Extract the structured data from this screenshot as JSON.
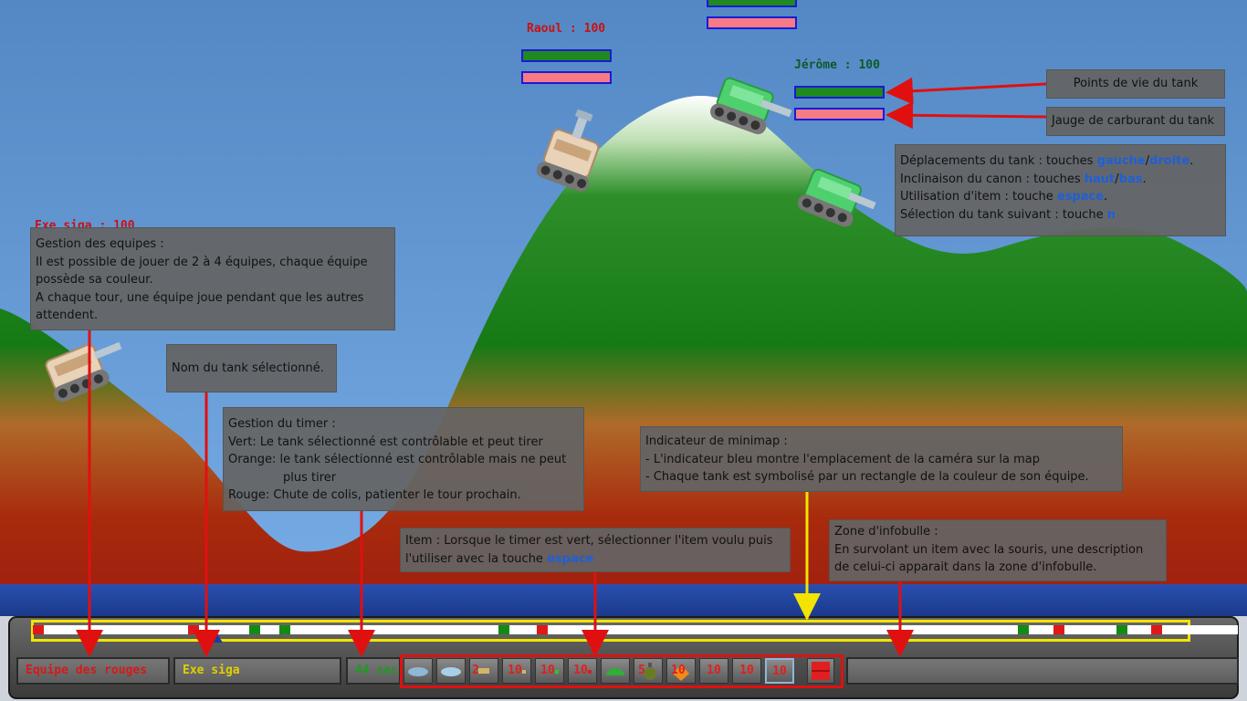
{
  "tanks": {
    "raoul": {
      "name": "Raoul : 100",
      "color": "#cc1010"
    },
    "jerome": {
      "name": "Jérôme : 100",
      "color": "#0d5a2a"
    },
    "exe_siga_partial": {
      "name": "Exe siga : 100",
      "color": "#cc1010"
    }
  },
  "annotations": {
    "hp": "Points de vie du tank",
    "fuel": "Jauge de carburant du tank",
    "controls": {
      "l1_pre": "Déplacements du tank : touches ",
      "l1_k1": "gauche",
      "l1_sep": "/",
      "l1_k2": "droite",
      "l1_post": ".",
      "l2_pre": "Inclinaison du canon : touches ",
      "l2_k1": "haut",
      "l2_sep": "/",
      "l2_k2": "bas",
      "l2_post": ".",
      "l3_pre": "Utilisation d'item : touche ",
      "l3_k": "espace",
      "l3_post": ".",
      "l4_pre": "Sélection du tank suivant :  touche ",
      "l4_k": "n"
    },
    "teams": {
      "l1": "Gestion des equipes :",
      "l2": "Il est possible de jouer de 2 à 4 équipes, chaque équipe",
      "l3": "possède sa couleur.",
      "l4": "A chaque tour, une équipe joue pendant que les autres",
      "l5": "attendent."
    },
    "tank_name": "Nom du tank sélectionné.",
    "timer": {
      "l1": "Gestion du timer :",
      "l2": "Vert: Le tank sélectionné est contrôlable et peut tirer",
      "l3": "Orange: le tank sélectionné est contrôlable mais ne peut",
      "l4": "plus tirer",
      "l5": "Rouge: Chute de colis, patienter le tour prochain."
    },
    "minimap": {
      "l1": "Indicateur de minimap :",
      "l2": "- L'indicateur bleu montre l'emplacement de la caméra sur la map",
      "l3": "- Chaque tank est symbolisé par un rectangle de la couleur de son équipe."
    },
    "item": {
      "l1": "Item : Lorsque le timer est vert, sélectionner l'item voulu puis",
      "l2_pre": "l'utiliser avec la touche ",
      "l2_k": "espace"
    },
    "infobulle": {
      "l1": "Zone d'infobulle :",
      "l2": "En survolant un item avec la souris, une description",
      "l3": "de celui-ci apparait dans la zone d'infobulle."
    }
  },
  "hud": {
    "team_label": "Equipe des rouges",
    "tank_label": "Exe siga",
    "timer_label": "44 sec",
    "items": [
      {
        "icon": "shell-icon",
        "count": ""
      },
      {
        "icon": "shell-icon",
        "count": ""
      },
      {
        "icon": "missile-icon",
        "count": "2"
      },
      {
        "icon": "ammo-icon",
        "count": "10"
      },
      {
        "icon": "ammo-green-icon",
        "count": "10"
      },
      {
        "icon": "ammo-red-icon",
        "count": "10"
      },
      {
        "icon": "mine-icon",
        "count": ""
      },
      {
        "icon": "grenade-icon",
        "count": "5"
      },
      {
        "icon": "airstrike-icon",
        "count": "10"
      },
      {
        "icon": "ammo-icon",
        "count": "10"
      },
      {
        "icon": "ammo-icon",
        "count": "10"
      },
      {
        "icon": "teleport-icon",
        "count": "10"
      },
      {
        "icon": "shield-icon",
        "count": ""
      }
    ]
  },
  "colors": {
    "team_red": "#e01818",
    "team_green": "#138a13",
    "camera_indicator": "#1a3aa0",
    "annotation_arrow": "#e01010",
    "highlight": "#f2e400"
  }
}
